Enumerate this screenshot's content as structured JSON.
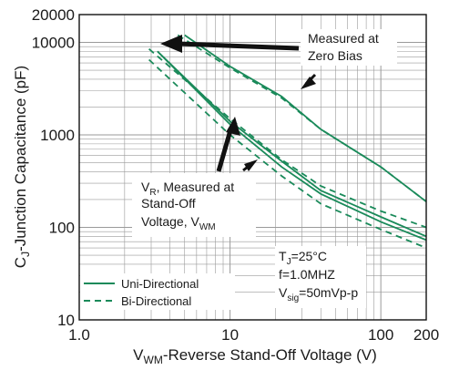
{
  "chart_data": {
    "type": "line",
    "xscale": "log",
    "yscale": "log",
    "xlim": [
      1,
      200
    ],
    "ylim": [
      10,
      20000
    ],
    "grid": true,
    "xlabel": {
      "pre": "V",
      "sub": "WM",
      "post": "-Reverse Stand-Off Voltage (V)"
    },
    "ylabel": {
      "pre": "C",
      "sub": "J",
      "post": "-Junction Capacitance (pF)"
    },
    "x_ticks": [
      {
        "value": 1,
        "label": "1.0"
      },
      {
        "value": 10,
        "label": "10"
      },
      {
        "value": 100,
        "label": "100"
      },
      {
        "value": 200,
        "label": "200"
      }
    ],
    "y_ticks": [
      {
        "value": 10,
        "label": "10"
      },
      {
        "value": 100,
        "label": "100"
      },
      {
        "value": 1000,
        "label": "1000"
      },
      {
        "value": 10000,
        "label": "10000"
      },
      {
        "value": 20000,
        "label": "20000"
      }
    ],
    "colors": {
      "series": "#1a8a5a",
      "grid": "#9a9a9a",
      "text": "#1a1a1a",
      "arrow": "#111111"
    },
    "series": [
      {
        "group": "zero-bias",
        "style": "solid",
        "x": [
          5,
          10,
          22,
          40,
          100,
          200
        ],
        "y": [
          12000,
          5500,
          2600,
          1150,
          450,
          190
        ]
      },
      {
        "group": "zero-bias",
        "style": "dashed",
        "x": [
          4.5,
          10,
          22,
          40,
          100,
          200
        ],
        "y": [
          12000,
          5300,
          2500,
          1150,
          450,
          190
        ]
      },
      {
        "group": "standoff",
        "style": "solid",
        "x": [
          3.3,
          10,
          22,
          40,
          100,
          200
        ],
        "y": [
          8000,
          1400,
          520,
          250,
          130,
          80
        ]
      },
      {
        "group": "standoff",
        "style": "solid",
        "x": [
          3.3,
          10,
          22,
          40,
          100,
          200
        ],
        "y": [
          8000,
          1300,
          450,
          230,
          115,
          73
        ]
      },
      {
        "group": "standoff",
        "style": "dashed",
        "x": [
          2.9,
          10,
          22,
          40,
          100,
          200
        ],
        "y": [
          8500,
          1500,
          540,
          280,
          150,
          100
        ]
      },
      {
        "group": "standoff",
        "style": "dashed",
        "x": [
          2.9,
          10,
          22,
          40,
          100,
          200
        ],
        "y": [
          6500,
          1000,
          360,
          180,
          95,
          60
        ]
      }
    ],
    "legend": {
      "placement": "bottom-left",
      "items": [
        {
          "label": "Uni-Directional",
          "style": "solid"
        },
        {
          "label": "Bi-Directional",
          "style": "dashed"
        }
      ]
    },
    "conditions": {
      "line1": {
        "pre": "T",
        "sub": "J",
        "post": "=25°C"
      },
      "line2": "f=1.0MHZ",
      "line3": {
        "pre": "V",
        "sub": "sig",
        "post": "=50mVp-p"
      }
    },
    "annotations": {
      "zero_bias": {
        "line1": "Measured at",
        "line2": "Zero Bias"
      },
      "standoff": {
        "line1": {
          "pre": "V",
          "sub": "R",
          "post": ", Measured at"
        },
        "line2": "Stand-Off",
        "line3": {
          "pre": "Voltage, V",
          "sub": "WM",
          "post": ""
        }
      }
    }
  }
}
